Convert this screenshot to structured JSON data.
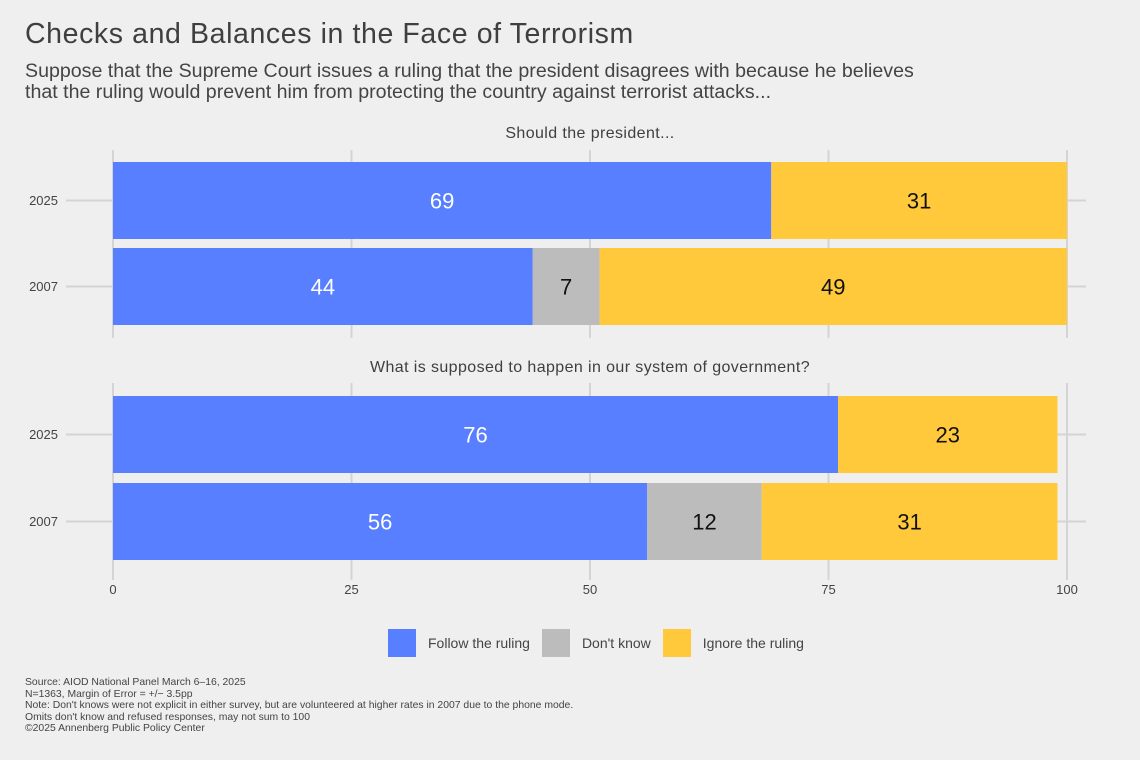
{
  "header": {
    "title": "Checks and Balances in the Face of Terrorism",
    "subtitle": "Suppose that the Supreme Court issues a ruling that the president disagrees with because he believes\nthat the ruling would prevent him from protecting the country against terrorist attacks..."
  },
  "legend": {
    "items": [
      {
        "label": "Follow the ruling",
        "color": "#577fff"
      },
      {
        "label": "Don't know",
        "color": "#bcbcbc"
      },
      {
        "label": "Ignore the ruling",
        "color": "#ffc93b"
      }
    ]
  },
  "footer": {
    "lines": [
      "Source: AIOD National Panel March 6–16, 2025",
      "N=1363, Margin of Error = +/− 3.5pp",
      "Note: Don't knows were not explicit in either survey, but are volunteered at higher rates in 2007 due to the phone mode.",
      "Omits don't know and refused responses, may not sum to 100",
      "©2025 Annenberg Public Policy Center"
    ]
  },
  "chart_data": {
    "type": "bar",
    "orientation": "horizontal-stacked",
    "title": "Checks and Balances in the Face of Terrorism",
    "xlabel": "",
    "ylabel": "",
    "xlim": [
      0,
      100
    ],
    "x_ticks": [
      "0",
      "25",
      "50",
      "75",
      "100"
    ],
    "x_tick_values": [
      0,
      25,
      50,
      75,
      100
    ],
    "grid": true,
    "legend_position": "bottom",
    "series_names": [
      "Follow the ruling",
      "Don't know",
      "Ignore the ruling"
    ],
    "series_colors": [
      "#577fff",
      "#bcbcbc",
      "#ffc93b"
    ],
    "label_colors": [
      "#ffffff",
      "#111111",
      "#111111"
    ],
    "panels": [
      {
        "title": "Should the president...",
        "categories": [
          "2025",
          "2007"
        ],
        "series": [
          {
            "name": "Follow the ruling",
            "values": [
              69,
              44
            ]
          },
          {
            "name": "Don't know",
            "values": [
              0,
              7
            ]
          },
          {
            "name": "Ignore the ruling",
            "values": [
              31,
              49
            ]
          }
        ]
      },
      {
        "title": "What is supposed to happen in our system of government?",
        "categories": [
          "2025",
          "2007"
        ],
        "series": [
          {
            "name": "Follow the ruling",
            "values": [
              76,
              56
            ]
          },
          {
            "name": "Don't know",
            "values": [
              0,
              12
            ]
          },
          {
            "name": "Ignore the ruling",
            "values": [
              23,
              31
            ]
          }
        ]
      }
    ]
  }
}
